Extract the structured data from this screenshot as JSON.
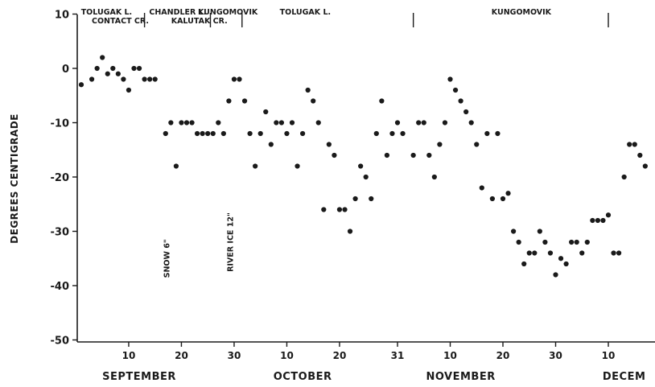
{
  "chart_data": {
    "type": "scatter",
    "title": "",
    "xlabel": "",
    "ylabel": "DEGREES CENTIGRADE",
    "ylim": [
      -50,
      10
    ],
    "yticks": [
      10,
      0,
      -10,
      -20,
      -30,
      -40,
      -50
    ],
    "x_unit": "days from September 1",
    "xlim": [
      0,
      103
    ],
    "xticks": [
      {
        "x": 9,
        "label": "10"
      },
      {
        "x": 19,
        "label": "20"
      },
      {
        "x": 29,
        "label": "30"
      },
      {
        "x": 39,
        "label": "10"
      },
      {
        "x": 49,
        "label": "20"
      },
      {
        "x": 60,
        "label": "31"
      },
      {
        "x": 70,
        "label": "10"
      },
      {
        "x": 80,
        "label": "20"
      },
      {
        "x": 90,
        "label": "30"
      },
      {
        "x": 100,
        "label": "10"
      }
    ],
    "months": [
      {
        "label": "SEPTEMBER",
        "x": 11
      },
      {
        "label": "OCTOBER",
        "x": 42
      },
      {
        "label": "NOVEMBER",
        "x": 72
      },
      {
        "label": "DECEM",
        "x": 103
      }
    ],
    "locations": [
      {
        "label": "TOLUGAK L.",
        "x": 4.8,
        "row": 1
      },
      {
        "label": "CHANDLER L.",
        "x": 18.3,
        "row": 1
      },
      {
        "label": "KUNGOMOVIK",
        "x": 27.8,
        "row": 1
      },
      {
        "label": "CONTACT CR.",
        "x": 7.4,
        "row": 2
      },
      {
        "label": "KALUTAK CR.",
        "x": 22.4,
        "row": 2
      },
      {
        "label": "TOLUGAK L.",
        "x": 42.5,
        "row": 1
      },
      {
        "label": "KUNGOMOVIK",
        "x": 83.5,
        "row": 1
      }
    ],
    "location_markers": [
      12,
      24.5,
      30.5,
      63,
      100
    ],
    "annotations": [
      {
        "label": "SNOW 6\"",
        "x": 16.7,
        "y": -35
      },
      {
        "label": "RIVER ICE 12\"",
        "x": 28.8,
        "y": -32
      }
    ],
    "series": [
      {
        "points": [
          [
            0,
            -3
          ],
          [
            2,
            -2
          ],
          [
            3,
            0
          ],
          [
            4,
            2
          ],
          [
            5,
            -1
          ],
          [
            6,
            0
          ],
          [
            7,
            -1
          ],
          [
            8,
            -2
          ],
          [
            9,
            -4
          ],
          [
            10,
            0
          ],
          [
            11,
            0
          ],
          [
            12,
            -2
          ],
          [
            13,
            -2
          ],
          [
            14,
            -2
          ],
          [
            16,
            -12
          ],
          [
            17,
            -10
          ],
          [
            18,
            -18
          ],
          [
            19,
            -10
          ],
          [
            20,
            -10
          ],
          [
            21,
            -10
          ],
          [
            22,
            -12
          ],
          [
            23,
            -12
          ],
          [
            24,
            -12
          ],
          [
            25,
            -12
          ],
          [
            26,
            -10
          ],
          [
            27,
            -12
          ],
          [
            28,
            -6
          ],
          [
            29,
            -2
          ],
          [
            30,
            -2
          ],
          [
            31,
            -6
          ],
          [
            32,
            -12
          ],
          [
            33,
            -18
          ],
          [
            34,
            -12
          ],
          [
            35,
            -8
          ],
          [
            36,
            -14
          ],
          [
            37,
            -10
          ],
          [
            38,
            -10
          ],
          [
            39,
            -12
          ],
          [
            40,
            -10
          ],
          [
            41,
            -18
          ],
          [
            42,
            -12
          ],
          [
            43,
            -4
          ],
          [
            44,
            -6
          ],
          [
            45,
            -10
          ],
          [
            46,
            -26
          ],
          [
            47,
            -14
          ],
          [
            48,
            -16
          ],
          [
            49,
            -26
          ],
          [
            50,
            -26
          ],
          [
            51,
            -30
          ],
          [
            52,
            -24
          ],
          [
            53,
            -18
          ],
          [
            54,
            -20
          ],
          [
            55,
            -24
          ],
          [
            56,
            -12
          ],
          [
            57,
            -6
          ],
          [
            58,
            -16
          ],
          [
            59,
            -12
          ],
          [
            60,
            -10
          ],
          [
            61,
            -12
          ],
          [
            63,
            -16
          ],
          [
            64,
            -10
          ],
          [
            65,
            -10
          ],
          [
            66,
            -16
          ],
          [
            67,
            -20
          ],
          [
            68,
            -14
          ],
          [
            69,
            -10
          ],
          [
            70,
            -2
          ],
          [
            71,
            -4
          ],
          [
            72,
            -6
          ],
          [
            73,
            -8
          ],
          [
            74,
            -10
          ],
          [
            75,
            -14
          ],
          [
            76,
            -22
          ],
          [
            77,
            -12
          ],
          [
            78,
            -24
          ],
          [
            79,
            -12
          ],
          [
            80,
            -24
          ],
          [
            81,
            -23
          ],
          [
            82,
            -30
          ],
          [
            83,
            -32
          ],
          [
            84,
            -36
          ],
          [
            85,
            -34
          ],
          [
            86,
            -34
          ],
          [
            87,
            -30
          ],
          [
            88,
            -32
          ],
          [
            89,
            -34
          ],
          [
            90,
            -38
          ],
          [
            91,
            -35
          ],
          [
            92,
            -36
          ],
          [
            93,
            -32
          ],
          [
            94,
            -32
          ],
          [
            95,
            -34
          ],
          [
            96,
            -32
          ],
          [
            97,
            -28
          ],
          [
            98,
            -28
          ],
          [
            99,
            -28
          ],
          [
            100,
            -27
          ],
          [
            101,
            -34
          ],
          [
            102,
            -34
          ],
          [
            103,
            -20
          ],
          [
            104,
            -14
          ],
          [
            105,
            -14
          ],
          [
            106,
            -16
          ],
          [
            107,
            -18
          ]
        ]
      }
    ]
  }
}
